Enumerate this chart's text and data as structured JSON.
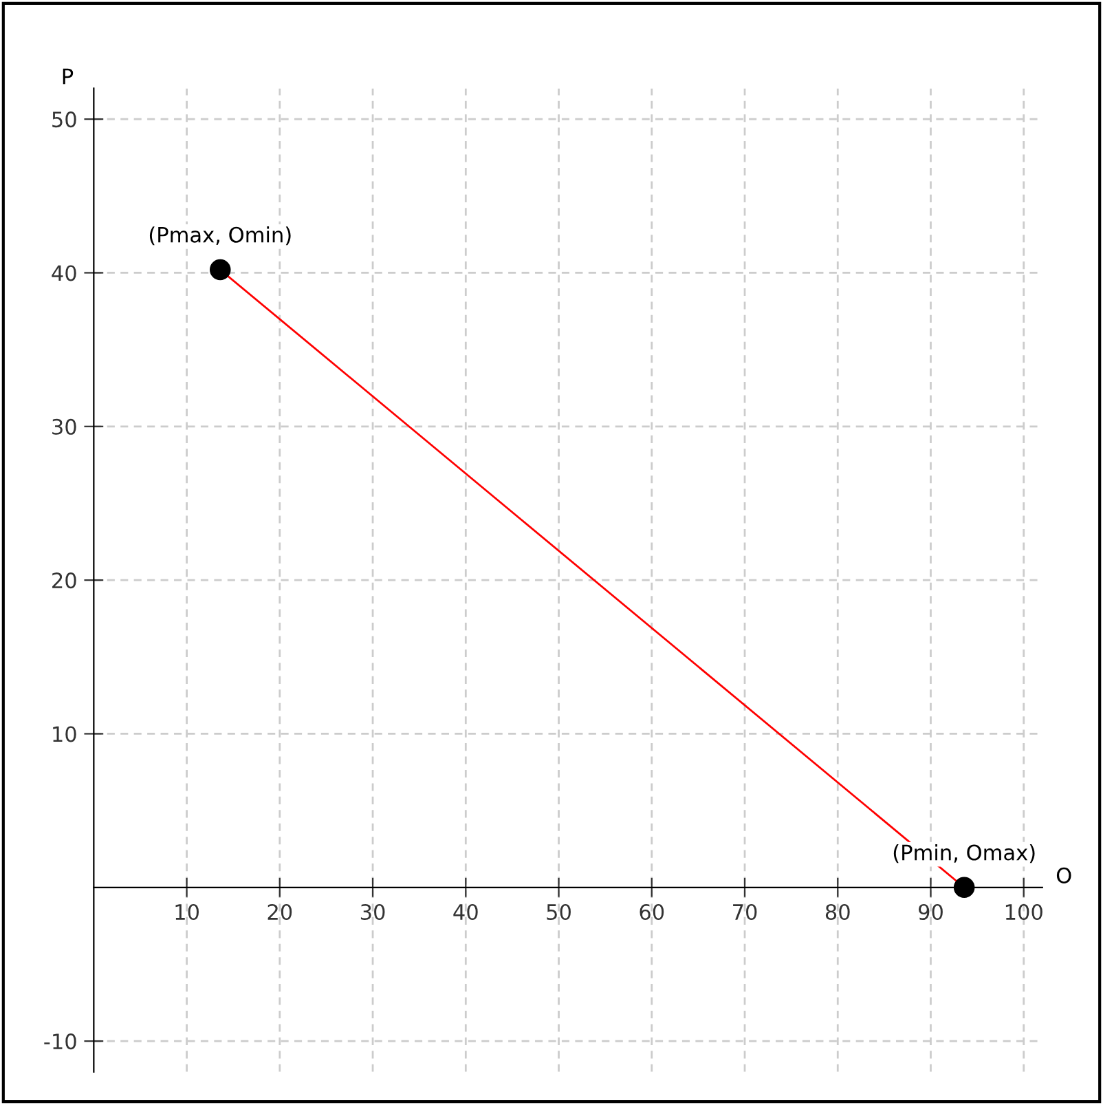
{
  "chart_data": {
    "type": "line",
    "xlabel": "O",
    "ylabel": "P",
    "x": [
      13.6,
      93.6
    ],
    "series": [
      {
        "color": "#ff0000",
        "values": [
          40.2,
          0
        ]
      },
      {
        "type": "scatter",
        "color": "#000000",
        "marker": "circle",
        "values": [
          40.2,
          0
        ]
      }
    ],
    "annotations": [
      {
        "text": "(Pmax, Omin)",
        "x": 13.6,
        "y": 40.2
      },
      {
        "text": "(Pmin, Omax)",
        "x": 93.6,
        "y": 0
      }
    ],
    "xlim": [
      0,
      102
    ],
    "ylim": [
      -12,
      52
    ],
    "xticks": [
      10,
      20,
      30,
      40,
      50,
      60,
      70,
      80,
      90,
      100
    ],
    "yticks": [
      -10,
      10,
      20,
      30,
      40,
      50
    ],
    "grid": true,
    "line_style": "solid"
  }
}
